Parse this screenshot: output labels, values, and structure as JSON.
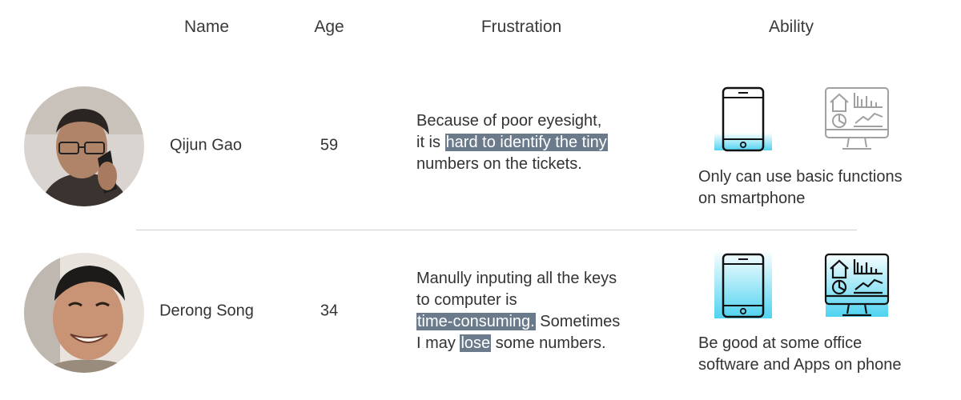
{
  "headers": {
    "name": "Name",
    "age": "Age",
    "frustration": "Frustration",
    "ability": "Ability"
  },
  "rows": [
    {
      "name": "Qijun Gao",
      "age": "59",
      "frustration": {
        "line1": "Because of poor eyesight,",
        "line2_pre": "it is ",
        "line2_highlight": "hard to identify the tiny",
        "line3": "numbers on the tickets."
      },
      "ability": {
        "line1": "Only can use basic functions",
        "line2": "on smartphone"
      },
      "icons": [
        "smartphone-icon",
        "computer-dashboard-icon"
      ]
    },
    {
      "name": "Derong Song",
      "age": "34",
      "frustration": {
        "line1": "Manully inputing all the keys",
        "line2": "to computer is",
        "line3_highlight": "time-consuming.",
        "line3_post": " Sometimes",
        "line4_pre": "I may ",
        "line4_highlight": "lose",
        "line4_post": " some numbers."
      },
      "ability": {
        "line1": "Be good at some office",
        "line2": "software and Apps on phone"
      },
      "icons": [
        "smartphone-icon",
        "computer-dashboard-icon"
      ]
    }
  ],
  "colors": {
    "highlight": "#6b7b8c",
    "ability_fill": "#4fd3f0",
    "icon_gray": "#a0a0a0",
    "icon_dark": "#111111"
  }
}
